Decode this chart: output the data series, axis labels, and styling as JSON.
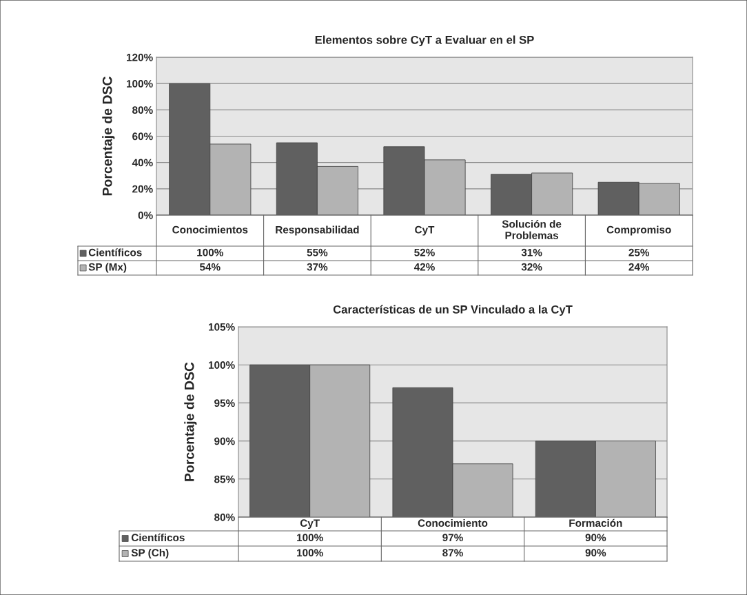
{
  "chart_data": [
    {
      "type": "bar",
      "title": "Elementos sobre CyT a Evaluar en el SP",
      "ylabel": "Porcentaje de DSC",
      "categories": [
        "Conocimientos",
        "Responsabilidad",
        "CyT",
        "Solución de\nProblemas",
        "Compromiso"
      ],
      "series": [
        {
          "name": "Científicos",
          "color": "#606060",
          "values": [
            100,
            55,
            52,
            31,
            25
          ],
          "value_labels": [
            "100%",
            "55%",
            "52%",
            "31%",
            "25%"
          ]
        },
        {
          "name": "SP (Mx)",
          "color": "#b3b3b3",
          "values": [
            54,
            37,
            42,
            32,
            24
          ],
          "value_labels": [
            "54%",
            "37%",
            "42%",
            "32%",
            "24%"
          ]
        }
      ],
      "ylim": [
        0,
        120
      ],
      "yticks": [
        {
          "value": 0,
          "label": "0%"
        },
        {
          "value": 20,
          "label": "20%"
        },
        {
          "value": 40,
          "label": "40%"
        },
        {
          "value": 60,
          "label": "60%"
        },
        {
          "value": 80,
          "label": "80%"
        },
        {
          "value": 100,
          "label": "100%"
        },
        {
          "value": 120,
          "label": "120%"
        }
      ],
      "grid": "y",
      "legend": "bottom"
    },
    {
      "type": "bar",
      "title": "Características de un SP Vinculado a la CyT",
      "ylabel": "Porcentaje de DSC",
      "categories": [
        "CyT",
        "Conocimiento",
        "Formación"
      ],
      "series": [
        {
          "name": "Científicos",
          "color": "#606060",
          "values": [
            100,
            97,
            90
          ],
          "value_labels": [
            "100%",
            "97%",
            "90%"
          ]
        },
        {
          "name": "SP (Ch)",
          "color": "#b3b3b3",
          "values": [
            100,
            87,
            90
          ],
          "value_labels": [
            "100%",
            "87%",
            "90%"
          ]
        }
      ],
      "ylim": [
        80,
        105
      ],
      "yticks": [
        {
          "value": 80,
          "label": "80%"
        },
        {
          "value": 85,
          "label": "85%"
        },
        {
          "value": 90,
          "label": "90%"
        },
        {
          "value": 95,
          "label": "95%"
        },
        {
          "value": 100,
          "label": "100%"
        },
        {
          "value": 105,
          "label": "105%"
        }
      ],
      "grid": "y",
      "legend": "bottom"
    }
  ]
}
